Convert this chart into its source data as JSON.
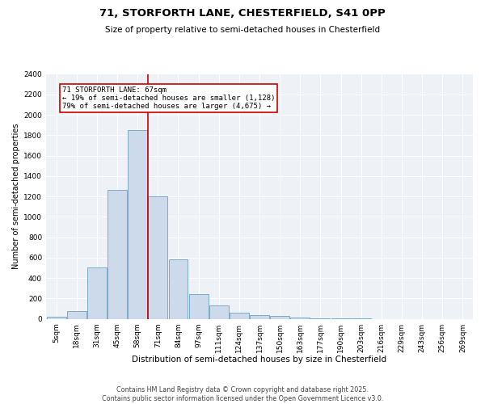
{
  "title1": "71, STORFORTH LANE, CHESTERFIELD, S41 0PP",
  "title2": "Size of property relative to semi-detached houses in Chesterfield",
  "xlabel": "Distribution of semi-detached houses by size in Chesterfield",
  "ylabel": "Number of semi-detached properties",
  "categories": [
    "5sqm",
    "18sqm",
    "31sqm",
    "45sqm",
    "58sqm",
    "71sqm",
    "84sqm",
    "97sqm",
    "111sqm",
    "124sqm",
    "137sqm",
    "150sqm",
    "163sqm",
    "177sqm",
    "190sqm",
    "203sqm",
    "216sqm",
    "229sqm",
    "243sqm",
    "256sqm",
    "269sqm"
  ],
  "values": [
    20,
    75,
    500,
    1260,
    1850,
    1200,
    580,
    240,
    130,
    60,
    35,
    25,
    10,
    5,
    2,
    1,
    0,
    0,
    0,
    0,
    0
  ],
  "bar_color": "#ccdaeb",
  "bar_edge_color": "#7aaac8",
  "bar_edge_width": 0.7,
  "property_line_index": 5,
  "property_label": "71 STORFORTH LANE: 67sqm",
  "pct_smaller": 19,
  "count_smaller": 1128,
  "pct_larger": 79,
  "count_larger": 4675,
  "annotation_box_color": "#cc0000",
  "ylim": [
    0,
    2400
  ],
  "yticks": [
    0,
    200,
    400,
    600,
    800,
    1000,
    1200,
    1400,
    1600,
    1800,
    2000,
    2200,
    2400
  ],
  "bg_color": "#eef2f7",
  "grid_color": "#ffffff",
  "footer1": "Contains HM Land Registry data © Crown copyright and database right 2025.",
  "footer2": "Contains public sector information licensed under the Open Government Licence v3.0.",
  "title1_fontsize": 9.5,
  "title2_fontsize": 7.5,
  "xlabel_fontsize": 7.5,
  "ylabel_fontsize": 7,
  "tick_fontsize": 6.5,
  "footer_fontsize": 5.8,
  "annot_fontsize": 6.5
}
